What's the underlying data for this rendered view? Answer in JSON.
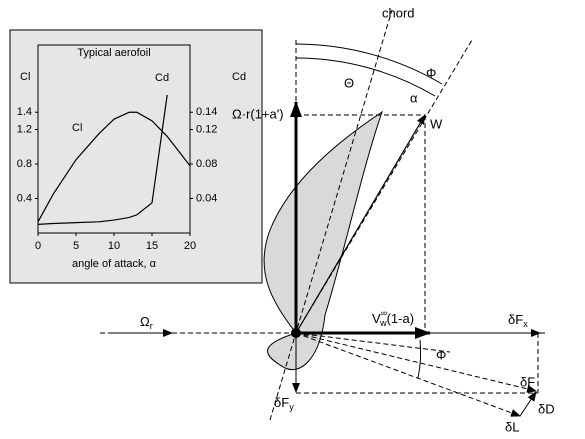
{
  "chart_data": {
    "type": "line",
    "title": "Typical aerofoil",
    "xlabel": "angle of attack, α",
    "ylabel": "Cl",
    "y2label": "Cd",
    "x": [
      0,
      2,
      5,
      8,
      10,
      12,
      13,
      15,
      17,
      20
    ],
    "series": [
      {
        "name": "Cl",
        "color": "#000000",
        "values": [
          0.13,
          0.45,
          0.85,
          1.15,
          1.32,
          1.4,
          1.4,
          1.3,
          1.12,
          0.78
        ]
      },
      {
        "name": "Cd",
        "color": "#000000",
        "axis": "y2",
        "values": [
          0.01,
          0.011,
          0.012,
          0.013,
          0.015,
          0.018,
          0.021,
          0.035,
          0.16,
          null
        ]
      }
    ],
    "xlim": [
      0,
      20
    ],
    "xticks": [
      0,
      5,
      10,
      15,
      20
    ],
    "ylim": [
      0,
      1.6
    ],
    "yticks": [
      0.4,
      0.8,
      1.2,
      1.4
    ],
    "y2lim": [
      0,
      0.16
    ],
    "y2ticks": [
      0.04,
      0.08,
      0.12,
      0.14
    ]
  },
  "diagram": {
    "chord": "chord",
    "theta": "Θ",
    "phi_top": "Φ",
    "alpha": "α",
    "w": "W",
    "tangential": "Ω·r(1+a')",
    "omega_r": {
      "main": "Ω",
      "sub": "r"
    },
    "axial": {
      "main": "V",
      "sup": "∞",
      "sub": "w",
      "tail": "(1-a)"
    },
    "fx": {
      "main": "δF",
      "sub": "x"
    },
    "f": "δF",
    "d": "δD",
    "l": "δL",
    "fy": {
      "main": "δF",
      "sub": "y"
    },
    "phi_bottom": "Φ"
  }
}
